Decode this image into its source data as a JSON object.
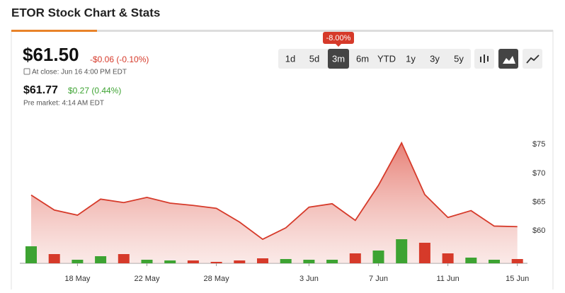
{
  "header": {
    "title": "ETOR Stock Chart & Stats"
  },
  "quote": {
    "price": "$61.50",
    "change": "-$0.06 (-0.10%)",
    "close_note": "At close: Jun 16 4:00 PM EDT",
    "pre_price": "$61.77",
    "pre_change": "$0.27 (0.44%)",
    "pre_note": "Pre market: 4:14 AM EDT"
  },
  "ranges": {
    "options": [
      "1d",
      "5d",
      "3m",
      "6m",
      "YTD",
      "1y",
      "3y",
      "5y"
    ],
    "selected": 2,
    "badge": "-8.00%"
  },
  "chart_data": {
    "type": "area",
    "color": "#d63a2a",
    "categories": [
      null,
      null,
      "18 May",
      null,
      null,
      "22 May",
      null,
      null,
      "28 May",
      null,
      null,
      null,
      "3 Jun",
      null,
      null,
      "7 Jun",
      null,
      null,
      "11 Jun",
      null,
      null,
      "15 Jun"
    ],
    "values": [
      66.2,
      63.6,
      62.7,
      65.5,
      64.9,
      65.8,
      64.8,
      64.4,
      63.9,
      61.5,
      58.5,
      60.5,
      64.1,
      64.7,
      61.8,
      67.9,
      75.3,
      66.3,
      62.3,
      63.5,
      60.8,
      60.7
    ],
    "ylim": [
      54.32,
      78
    ],
    "yticks": [
      {
        "value": 60,
        "label": "$60"
      },
      {
        "value": 65,
        "label": "$65"
      },
      {
        "value": 70,
        "label": "$70"
      },
      {
        "value": 75,
        "label": "$75"
      }
    ],
    "volume": [
      24,
      13,
      5,
      10,
      13,
      5,
      4,
      4,
      2,
      4,
      7,
      6,
      5,
      5,
      14,
      18,
      34,
      29,
      14,
      8,
      5,
      6
    ],
    "volume_colors": [
      "#3da332",
      "#d63a2a",
      "#3da332",
      "#3da332",
      "#d63a2a",
      "#3da332",
      "#3da332",
      "#d63a2a",
      "#d63a2a",
      "#d63a2a",
      "#d63a2a",
      "#3da332",
      "#3da332",
      "#3da332",
      "#d63a2a",
      "#3da332",
      "#3da332",
      "#d63a2a",
      "#d63a2a",
      "#3da332",
      "#3da332",
      "#d63a2a"
    ],
    "vlim": [
      0,
      40
    ]
  }
}
